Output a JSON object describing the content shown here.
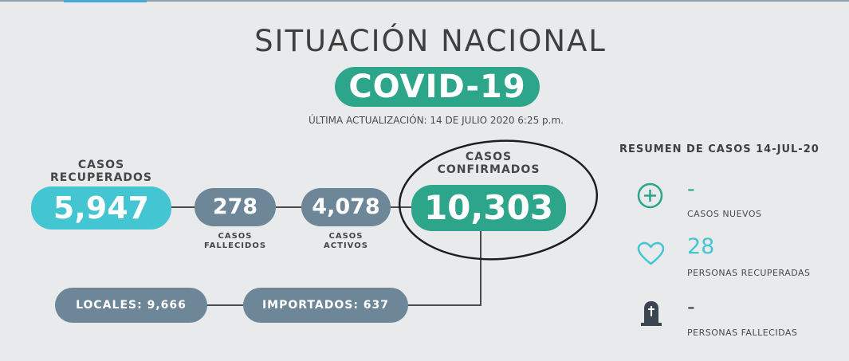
{
  "header": {
    "title": "SITUACIÓN NACIONAL",
    "subtitle": "COVID-19",
    "updated": "ÚLTIMA ACTUALIZACIÓN: 14 DE JULIO 2020 6:25 p.m."
  },
  "stats": {
    "recovered": {
      "label_line1": "CASOS",
      "label_line2": "RECUPERADOS",
      "value": "5,947"
    },
    "deceased": {
      "value": "278",
      "label_line1": "CASOS",
      "label_line2": "FALLECIDOS"
    },
    "active": {
      "value": "4,078",
      "label_line1": "CASOS",
      "label_line2": "ACTIVOS"
    },
    "confirmed": {
      "label_line1": "CASOS",
      "label_line2": "CONFIRMADOS",
      "value": "10,303"
    },
    "locales": "LOCALES: 9,666",
    "importados": "IMPORTADOS: 637"
  },
  "summary": {
    "title": "RESUMEN DE CASOS 14-JUL-20",
    "items": [
      {
        "icon": "plus-circle-icon",
        "value": "-",
        "label": "CASOS NUEVOS"
      },
      {
        "icon": "heart-icon",
        "value": "28",
        "label": "PERSONAS RECUPERADAS"
      },
      {
        "icon": "tombstone-icon",
        "value": "-",
        "label": "PERSONAS FALLECIDAS"
      }
    ]
  },
  "colors": {
    "teal": "#2da58b",
    "cyan": "#43c5d2",
    "slate": "#6d8698",
    "background": "#e9eaec"
  }
}
